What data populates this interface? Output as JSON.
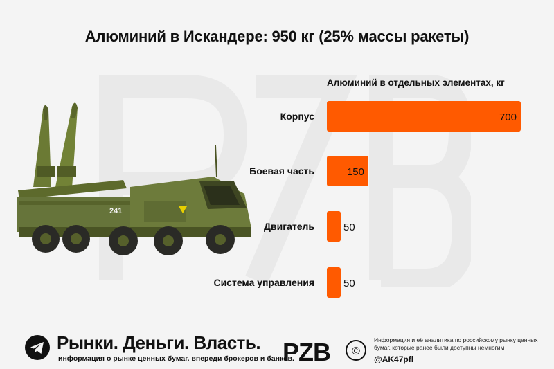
{
  "title": "Алюминий в Искандере: 950 кг (25% массы ракеты)",
  "chart_data": {
    "type": "bar",
    "orientation": "horizontal",
    "title": "Алюминий в Искандере: 950 кг (25% массы ракеты)",
    "subtitle": "Алюминий в отдельных элементах, кг",
    "categories": [
      "Корпус",
      "Боевая часть",
      "Двигатель",
      "Система управления"
    ],
    "values": [
      700,
      150,
      50,
      50
    ],
    "xlim": [
      0,
      700
    ],
    "bar_color": "#ff5a00",
    "grid": false,
    "legend": "none"
  },
  "image": {
    "vehicle_number": "241"
  },
  "footer": {
    "brand_name": "Рынки. Деньги. Власть.",
    "brand_tagline": "информация о рынке ценных бумаг. впереди брокеров и банков.",
    "logo_text": "PZB",
    "copyright_symbol": "©",
    "info_text": "Информация и её аналитика по российскому рынку ценных бумаг, которые ранее были доступны немногим",
    "handle": "@AK47pfl",
    "icon": "telegram-icon"
  },
  "colors": {
    "accent": "#ff5a00",
    "background": "#f4f4f4",
    "text": "#111111",
    "telegram_bg": "#111111"
  }
}
